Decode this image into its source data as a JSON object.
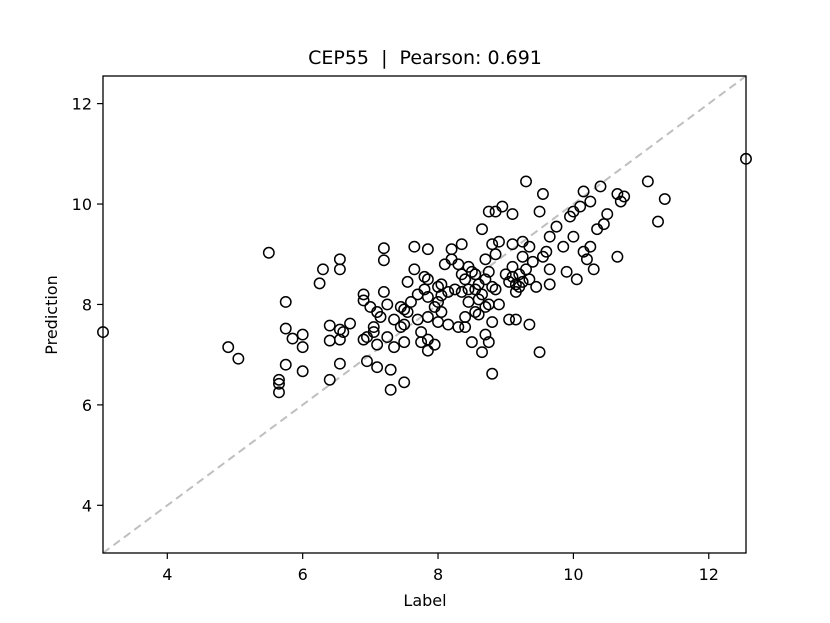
{
  "chart_data": {
    "type": "scatter",
    "title": "CEP55  |  Pearson: 0.691",
    "xlabel": "Label",
    "ylabel": "Prediction",
    "xlim": [
      3.05,
      12.55
    ],
    "ylim": [
      3.05,
      12.55
    ],
    "xticks": [
      4,
      6,
      8,
      10,
      12
    ],
    "yticks": [
      4,
      6,
      8,
      10,
      12
    ],
    "reference_line": {
      "type": "identity",
      "style": "dashed",
      "color": "#bfbfbf"
    },
    "grid": false,
    "marker": {
      "shape": "open-circle",
      "edge_color": "#000000"
    },
    "points": [
      [
        3.05,
        7.45
      ],
      [
        4.9,
        7.15
      ],
      [
        5.05,
        6.92
      ],
      [
        5.5,
        9.03
      ],
      [
        5.65,
        6.5
      ],
      [
        5.65,
        6.42
      ],
      [
        5.65,
        6.25
      ],
      [
        5.75,
        8.05
      ],
      [
        5.75,
        7.52
      ],
      [
        5.75,
        6.8
      ],
      [
        5.85,
        7.32
      ],
      [
        6.0,
        7.4
      ],
      [
        6.0,
        7.15
      ],
      [
        6.0,
        6.67
      ],
      [
        6.25,
        8.42
      ],
      [
        6.3,
        8.7
      ],
      [
        6.4,
        7.58
      ],
      [
        6.4,
        7.28
      ],
      [
        6.4,
        6.5
      ],
      [
        6.55,
        8.9
      ],
      [
        6.55,
        8.7
      ],
      [
        6.55,
        7.5
      ],
      [
        6.55,
        7.3
      ],
      [
        6.55,
        6.82
      ],
      [
        6.6,
        7.45
      ],
      [
        6.7,
        7.62
      ],
      [
        6.9,
        8.2
      ],
      [
        6.9,
        8.08
      ],
      [
        6.9,
        7.3
      ],
      [
        6.95,
        7.35
      ],
      [
        6.95,
        6.87
      ],
      [
        7.0,
        7.95
      ],
      [
        7.05,
        7.55
      ],
      [
        7.05,
        7.45
      ],
      [
        7.1,
        7.85
      ],
      [
        7.1,
        7.2
      ],
      [
        7.1,
        6.75
      ],
      [
        7.15,
        7.75
      ],
      [
        7.2,
        9.12
      ],
      [
        7.2,
        8.88
      ],
      [
        7.2,
        8.25
      ],
      [
        7.25,
        8.0
      ],
      [
        7.25,
        7.35
      ],
      [
        7.3,
        6.7
      ],
      [
        7.3,
        6.3
      ],
      [
        7.35,
        7.7
      ],
      [
        7.35,
        7.15
      ],
      [
        7.45,
        7.95
      ],
      [
        7.45,
        7.55
      ],
      [
        7.5,
        7.9
      ],
      [
        7.5,
        7.6
      ],
      [
        7.5,
        7.25
      ],
      [
        7.5,
        6.45
      ],
      [
        7.55,
        8.45
      ],
      [
        7.55,
        7.85
      ],
      [
        7.6,
        8.05
      ],
      [
        7.65,
        9.15
      ],
      [
        7.65,
        8.7
      ],
      [
        7.7,
        8.2
      ],
      [
        7.7,
        7.7
      ],
      [
        7.75,
        7.45
      ],
      [
        7.75,
        7.25
      ],
      [
        7.8,
        8.55
      ],
      [
        7.8,
        8.3
      ],
      [
        7.85,
        9.1
      ],
      [
        7.85,
        8.5
      ],
      [
        7.85,
        8.15
      ],
      [
        7.85,
        7.75
      ],
      [
        7.85,
        7.3
      ],
      [
        7.85,
        7.08
      ],
      [
        7.95,
        7.2
      ],
      [
        7.95,
        7.95
      ],
      [
        8.0,
        8.35
      ],
      [
        8.0,
        8.05
      ],
      [
        8.0,
        7.65
      ],
      [
        8.05,
        8.4
      ],
      [
        8.05,
        8.18
      ],
      [
        8.05,
        7.85
      ],
      [
        8.1,
        8.8
      ],
      [
        8.15,
        8.25
      ],
      [
        8.15,
        7.6
      ],
      [
        8.2,
        9.1
      ],
      [
        8.2,
        8.9
      ],
      [
        8.25,
        8.3
      ],
      [
        8.3,
        8.8
      ],
      [
        8.3,
        7.55
      ],
      [
        8.35,
        9.2
      ],
      [
        8.35,
        8.6
      ],
      [
        8.35,
        8.25
      ],
      [
        8.4,
        8.5
      ],
      [
        8.4,
        7.75
      ],
      [
        8.4,
        7.55
      ],
      [
        8.45,
        8.75
      ],
      [
        8.45,
        8.3
      ],
      [
        8.45,
        8.05
      ],
      [
        8.5,
        7.25
      ],
      [
        8.5,
        8.65
      ],
      [
        8.55,
        8.6
      ],
      [
        8.55,
        8.3
      ],
      [
        8.55,
        7.85
      ],
      [
        8.6,
        8.4
      ],
      [
        8.6,
        8.1
      ],
      [
        8.6,
        7.8
      ],
      [
        8.65,
        9.5
      ],
      [
        8.65,
        8.2
      ],
      [
        8.65,
        7.05
      ],
      [
        8.7,
        8.9
      ],
      [
        8.7,
        8.5
      ],
      [
        8.7,
        7.95
      ],
      [
        8.7,
        7.4
      ],
      [
        8.75,
        9.85
      ],
      [
        8.75,
        8.65
      ],
      [
        8.75,
        8.0
      ],
      [
        8.75,
        7.25
      ],
      [
        8.8,
        9.2
      ],
      [
        8.8,
        8.35
      ],
      [
        8.8,
        7.65
      ],
      [
        8.8,
        6.62
      ],
      [
        8.85,
        9.85
      ],
      [
        8.85,
        9.0
      ],
      [
        8.85,
        8.3
      ],
      [
        8.9,
        9.25
      ],
      [
        8.9,
        8.0
      ],
      [
        8.95,
        9.95
      ],
      [
        9.0,
        8.6
      ],
      [
        9.05,
        8.45
      ],
      [
        9.05,
        7.7
      ],
      [
        9.1,
        9.8
      ],
      [
        9.1,
        9.2
      ],
      [
        9.1,
        8.75
      ],
      [
        9.1,
        8.55
      ],
      [
        9.15,
        8.4
      ],
      [
        9.15,
        8.25
      ],
      [
        9.15,
        7.7
      ],
      [
        9.2,
        8.6
      ],
      [
        9.2,
        8.35
      ],
      [
        9.25,
        9.25
      ],
      [
        9.25,
        8.95
      ],
      [
        9.25,
        8.45
      ],
      [
        9.3,
        10.45
      ],
      [
        9.3,
        8.7
      ],
      [
        9.35,
        9.15
      ],
      [
        9.35,
        8.5
      ],
      [
        9.35,
        7.6
      ],
      [
        9.4,
        8.85
      ],
      [
        9.45,
        8.35
      ],
      [
        9.5,
        7.05
      ],
      [
        9.5,
        9.85
      ],
      [
        9.55,
        10.2
      ],
      [
        9.55,
        8.95
      ],
      [
        9.6,
        9.05
      ],
      [
        9.65,
        9.35
      ],
      [
        9.65,
        8.7
      ],
      [
        9.65,
        8.4
      ],
      [
        9.75,
        9.55
      ],
      [
        9.85,
        9.15
      ],
      [
        9.9,
        8.65
      ],
      [
        9.95,
        9.75
      ],
      [
        10.0,
        9.85
      ],
      [
        10.0,
        9.35
      ],
      [
        10.05,
        8.5
      ],
      [
        10.1,
        9.95
      ],
      [
        10.15,
        10.25
      ],
      [
        10.15,
        9.05
      ],
      [
        10.2,
        8.9
      ],
      [
        10.25,
        10.05
      ],
      [
        10.25,
        9.15
      ],
      [
        10.3,
        8.7
      ],
      [
        10.35,
        9.5
      ],
      [
        10.4,
        10.35
      ],
      [
        10.45,
        9.6
      ],
      [
        10.5,
        9.8
      ],
      [
        10.65,
        8.95
      ],
      [
        10.65,
        10.2
      ],
      [
        10.7,
        10.05
      ],
      [
        10.75,
        10.15
      ],
      [
        11.1,
        10.45
      ],
      [
        11.25,
        9.65
      ],
      [
        11.35,
        10.1
      ],
      [
        12.55,
        10.9
      ]
    ]
  }
}
